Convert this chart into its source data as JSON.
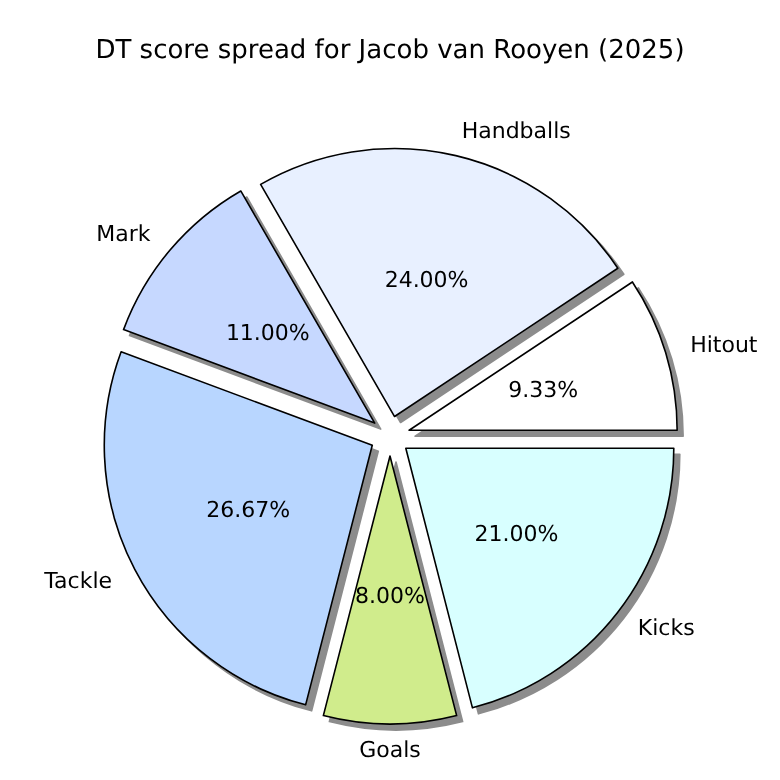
{
  "chart_data": {
    "type": "pie",
    "title": "DT score spread for Jacob van Rooyen (2025)",
    "categories": [
      "Hitout",
      "Handballs",
      "Mark",
      "Tackle",
      "Goals",
      "Kicks"
    ],
    "values": [
      9.33,
      24.0,
      11.0,
      26.67,
      8.0,
      21.0
    ],
    "colors": [
      "#ffffff",
      "#e8f0ff",
      "#c6d8ff",
      "#b8d6ff",
      "#d0ec8c",
      "#d8ffff"
    ],
    "value_labels": [
      "9.33%",
      "24.00%",
      "11.00%",
      "26.67%",
      "8.00%",
      "21.00%"
    ],
    "legend": false
  }
}
